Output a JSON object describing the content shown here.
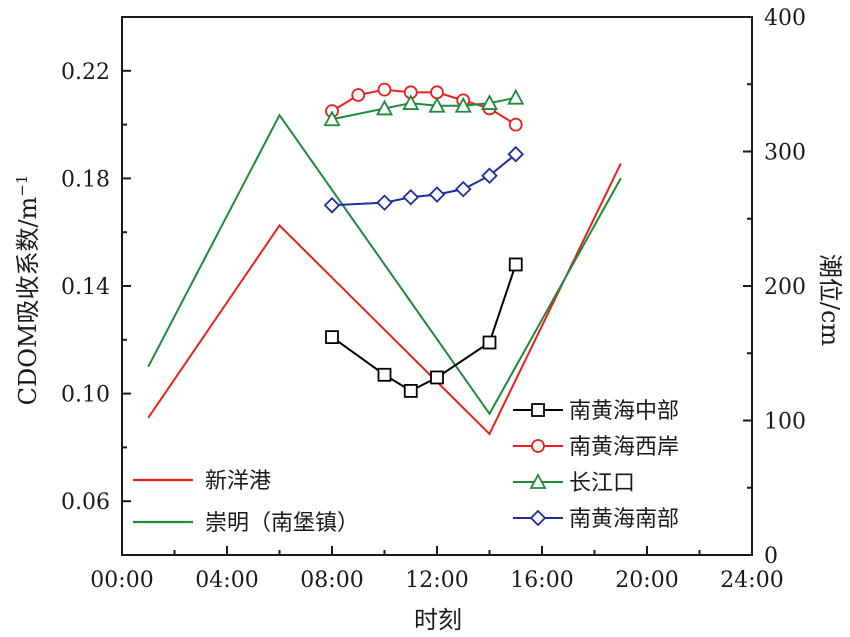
{
  "chart_data": {
    "type": "line",
    "xlabel": "时刻",
    "ylabel": "CDOM吸收系数/m",
    "ylabel_sup": "−1",
    "y2label": "潮位/cm",
    "xlim": [
      0,
      24
    ],
    "ylim": [
      0.04,
      0.24
    ],
    "y2lim": [
      0,
      400
    ],
    "x_ticks": [
      0,
      4,
      8,
      12,
      16,
      20,
      24
    ],
    "x_tick_labels": [
      "00:00",
      "04:00",
      "08:00",
      "12:00",
      "16:00",
      "20:00",
      "24:00"
    ],
    "y_ticks": [
      0.06,
      0.1,
      0.14,
      0.18,
      0.22
    ],
    "y_tick_labels": [
      "0.06",
      "0.10",
      "0.14",
      "0.18",
      "0.22"
    ],
    "y2_ticks": [
      0,
      100,
      200,
      300,
      400
    ],
    "y2_tick_labels": [
      "0",
      "100",
      "200",
      "300",
      "400"
    ],
    "series": [
      {
        "name": "南黄海中部",
        "axis": "left",
        "color": "#000000",
        "marker": "square",
        "x": [
          8,
          10,
          11,
          12,
          14,
          15
        ],
        "y": [
          0.121,
          0.107,
          0.101,
          0.106,
          0.119,
          0.148
        ]
      },
      {
        "name": "南黄海西岸",
        "axis": "left",
        "color": "#e8211a",
        "marker": "circle",
        "x": [
          8,
          9,
          10,
          11,
          12,
          13,
          14,
          15
        ],
        "y": [
          0.205,
          0.211,
          0.213,
          0.212,
          0.212,
          0.209,
          0.206,
          0.2
        ]
      },
      {
        "name": "长江口",
        "axis": "left",
        "color": "#1e8a3a",
        "marker": "triangle",
        "x": [
          8,
          10,
          11,
          12,
          13,
          14,
          15
        ],
        "y": [
          0.202,
          0.206,
          0.208,
          0.207,
          0.207,
          0.208,
          0.21
        ]
      },
      {
        "name": "南黄海南部",
        "axis": "left",
        "color": "#1f2d9e",
        "marker": "diamond",
        "x": [
          8,
          10,
          11,
          12,
          13,
          14,
          15
        ],
        "y": [
          0.17,
          0.171,
          0.173,
          0.174,
          0.176,
          0.181,
          0.189
        ]
      },
      {
        "name": "新洋港",
        "axis": "right",
        "color": "#e8211a",
        "marker": "none",
        "x": [
          1,
          6,
          14,
          19
        ],
        "y": [
          102,
          245,
          90,
          291
        ]
      },
      {
        "name": "崇明（南堡镇）",
        "axis": "right",
        "color": "#1e8a3a",
        "marker": "none",
        "x": [
          1,
          6,
          14,
          19
        ],
        "y": [
          140,
          327,
          105,
          280
        ]
      }
    ],
    "legend_right_position": "lower-right",
    "legend_left_position": "lower-left",
    "grid": false
  }
}
